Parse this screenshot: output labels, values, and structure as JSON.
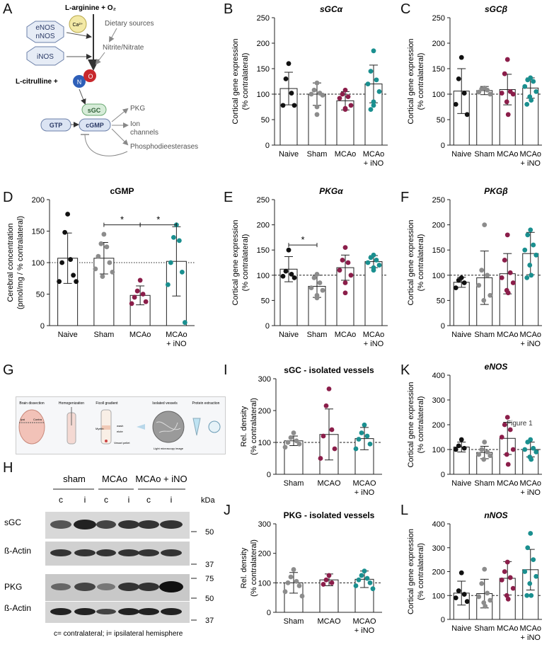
{
  "figure": {
    "panels": [
      "A",
      "B",
      "C",
      "D",
      "E",
      "F",
      "G",
      "H",
      "I",
      "J",
      "K",
      "L"
    ],
    "overlay_text": "Figure 1"
  },
  "colors": {
    "naive": "#111111",
    "sham": "#8c8c8c",
    "mcao": "#8b1e4a",
    "ino": "#1a8f8f",
    "bar_edge": "#222222"
  },
  "panel_a": {
    "substrate": "L-arginine + O₂",
    "enzymes": [
      "eNOS",
      "nNOS"
    ],
    "ca": "Ca²⁺",
    "inos": "iNOS",
    "dietary": "Dietary sources",
    "nitrite": "Nitrite/Nitrate",
    "citrulline": "L-citrulline +",
    "n": "N",
    "o": "O",
    "sgc": "sGC",
    "gtp": "GTP",
    "cgmp": "cGMP",
    "targets": [
      "PKG",
      "Ion",
      "channels",
      "Phosphodieesterases"
    ]
  },
  "panel_g": {
    "steps": [
      "Brain dissection",
      "Homogenization",
      "Ficoll gradient",
      "Isolated vessels",
      "Protein extraction"
    ],
    "labels": [
      "Ipsi",
      "Contra",
      "Myelin",
      "wash",
      "elute",
      "Vessel pellet",
      "Light microscopy image"
    ]
  },
  "panel_h": {
    "groups": [
      "sham",
      "MCAo",
      "MCAo + iNO"
    ],
    "lanes": [
      "c",
      "i",
      "c",
      "i",
      "c",
      "i"
    ],
    "kda_label": "kDa",
    "blots": [
      {
        "label": "sGC",
        "marker": "50"
      },
      {
        "label": "ß-Actin",
        "marker": "37"
      },
      {
        "label": "PKG",
        "marker": "75"
      },
      {
        "label": "ß-Actin",
        "marker": "37"
      }
    ],
    "marker_mid": "50",
    "caption": "c= contralateral; i= ipsilateral hemisphere"
  },
  "chart_data": [
    {
      "id": "B",
      "type": "bar",
      "title": "sGCα",
      "title_italic": true,
      "ylabel": [
        "Cortical gene expression",
        "(% contralateral)"
      ],
      "ylim": [
        0,
        250
      ],
      "yticks": [
        0,
        50,
        100,
        150,
        200,
        250
      ],
      "categories": [
        [
          "Naive"
        ],
        [
          "Sham"
        ],
        [
          "MCAo"
        ],
        [
          "MCAo",
          "+ iNO"
        ]
      ],
      "reference_line": 100,
      "means": [
        111,
        100,
        87,
        120
      ],
      "sd": [
        32,
        22,
        18,
        37
      ],
      "points": [
        [
          160,
          130,
          102,
          78,
          78
        ],
        [
          122,
          108,
          102,
          100,
          98,
          75,
          60
        ],
        [
          108,
          100,
          95,
          92,
          78,
          72,
          70
        ],
        [
          185,
          145,
          128,
          120,
          105,
          85,
          78,
          70
        ]
      ],
      "significance": []
    },
    {
      "id": "C",
      "type": "bar",
      "title": "sGCβ",
      "title_italic": true,
      "ylabel": [
        "Cortical gene expression",
        "(% contralateral)"
      ],
      "ylim": [
        0,
        250
      ],
      "yticks": [
        0,
        50,
        100,
        150,
        200,
        250
      ],
      "categories": [
        [
          "Naive"
        ],
        [
          "Sham"
        ],
        [
          "MCAo"
        ],
        [
          "MCAo",
          "+ iNO"
        ]
      ],
      "reference_line": 100,
      "means": [
        106,
        107,
        109,
        112
      ],
      "sd": [
        44,
        8,
        30,
        20
      ],
      "points": [
        [
          172,
          130,
          102,
          80,
          60
        ],
        [
          112,
          110,
          108,
          104,
          100
        ],
        [
          168,
          140,
          105,
          102,
          100,
          85,
          60
        ],
        [
          132,
          128,
          125,
          115,
          105,
          95,
          88,
          80
        ]
      ],
      "significance": []
    },
    {
      "id": "D",
      "type": "bar",
      "title": "cGMP",
      "title_italic": false,
      "ylabel": [
        "Cerebral concentration",
        "(pmol/mg / % contralateral)"
      ],
      "ylim": [
        0,
        200
      ],
      "yticks": [
        0,
        50,
        100,
        150,
        200
      ],
      "categories": [
        [
          "Naive"
        ],
        [
          "Sham"
        ],
        [
          "MCAo"
        ],
        [
          "MCAo",
          "+ iNO"
        ]
      ],
      "reference_line": 100,
      "means": [
        107,
        107,
        48,
        102
      ],
      "sd": [
        40,
        25,
        15,
        55
      ],
      "points": [
        [
          177,
          148,
          105,
          100,
          80,
          70,
          70
        ],
        [
          145,
          130,
          125,
          110,
          100,
          90,
          85,
          78
        ],
        [
          72,
          55,
          50,
          45,
          38,
          35
        ],
        [
          160,
          140,
          135,
          100,
          85,
          65,
          5
        ]
      ],
      "significance": [
        {
          "from": 1,
          "to": 2,
          "y": 160,
          "label": "*"
        },
        {
          "from": 2,
          "to": 3,
          "y": 160,
          "label": "*"
        }
      ]
    },
    {
      "id": "E",
      "type": "bar",
      "title": "PKGα",
      "title_italic": true,
      "ylabel": [
        "Cortical gene expression",
        "(% contralateral)"
      ],
      "ylim": [
        0,
        250
      ],
      "yticks": [
        0,
        50,
        100,
        150,
        200,
        250
      ],
      "categories": [
        [
          "Naive"
        ],
        [
          "Sham"
        ],
        [
          "MCAo"
        ],
        [
          "MCAo",
          "+ iNO"
        ]
      ],
      "reference_line": 100,
      "means": [
        112,
        78,
        115,
        127
      ],
      "sd": [
        25,
        22,
        25,
        12
      ],
      "points": [
        [
          150,
          108,
          102,
          98,
          95
        ],
        [
          102,
          95,
          85,
          75,
          70,
          60,
          55
        ],
        [
          155,
          130,
          125,
          110,
          100,
          85,
          65
        ],
        [
          140,
          135,
          130,
          125,
          120,
          115,
          110
        ]
      ],
      "significance": [
        {
          "from": 0,
          "to": 1,
          "y": 160,
          "label": "*"
        }
      ]
    },
    {
      "id": "F",
      "type": "bar",
      "title": "PKGβ",
      "title_italic": true,
      "ylabel": [
        "Cortical gene expression",
        "(% contralateral)"
      ],
      "ylim": [
        0,
        250
      ],
      "yticks": [
        0,
        50,
        100,
        150,
        200,
        250
      ],
      "categories": [
        [
          "Naive"
        ],
        [
          "Sham"
        ],
        [
          "MCAo"
        ],
        [
          "MCAo",
          "+ iNO"
        ]
      ],
      "reference_line": 100,
      "means": [
        86,
        95,
        103,
        143
      ],
      "sd": [
        10,
        53,
        40,
        42
      ],
      "points": [
        [
          95,
          90,
          85,
          75
        ],
        [
          200,
          110,
          100,
          80,
          60,
          50
        ],
        [
          180,
          130,
          105,
          95,
          85,
          70,
          65
        ],
        [
          190,
          180,
          160,
          150,
          140,
          120,
          100,
          95
        ]
      ],
      "significance": []
    },
    {
      "id": "I",
      "type": "bar",
      "title": "sGC - isolated vessels",
      "title_italic": false,
      "ylabel": [
        "Rel. density",
        "(% contralateral)"
      ],
      "ylim": [
        0,
        300
      ],
      "yticks": [
        0,
        100,
        200,
        300
      ],
      "categories": [
        [
          "Sham"
        ],
        [
          "MCAO"
        ],
        [
          "MCAO",
          "+ iNO"
        ]
      ],
      "reference_line": 100,
      "means": [
        105,
        125,
        112
      ],
      "sd": [
        15,
        80,
        35
      ],
      "points": [
        [
          130,
          115,
          105,
          100,
          95,
          85
        ],
        [
          268,
          215,
          140,
          120,
          80,
          50
        ],
        [
          155,
          130,
          120,
          110,
          95,
          80
        ]
      ],
      "significance": []
    },
    {
      "id": "J",
      "type": "bar",
      "title": "PKG - isolated vessels",
      "title_italic": false,
      "ylabel": [
        "Rel. density",
        "(% contralateral)"
      ],
      "ylim": [
        0,
        300
      ],
      "yticks": [
        0,
        100,
        200,
        300
      ],
      "categories": [
        [
          "Sham"
        ],
        [
          "MCAO"
        ],
        [
          "MCAO",
          "+ iNO"
        ]
      ],
      "reference_line": 100,
      "means": [
        100,
        110,
        112
      ],
      "sd": [
        35,
        20,
        28
      ],
      "points": [
        [
          145,
          120,
          105,
          100,
          90,
          70,
          55
        ],
        [
          125,
          110,
          100,
          95
        ],
        [
          140,
          125,
          115,
          110,
          100,
          90,
          80
        ]
      ],
      "significance": []
    },
    {
      "id": "K",
      "type": "bar",
      "title": "eNOS",
      "title_italic": true,
      "ylabel": [
        "Cortical gene expression",
        "(% contralateral)"
      ],
      "ylim": [
        0,
        400
      ],
      "yticks": [
        0,
        100,
        200,
        300,
        400
      ],
      "categories": [
        [
          "Naive"
        ],
        [
          "Sham"
        ],
        [
          "MCAo"
        ],
        [
          "MCAo",
          "+ iNO"
        ]
      ],
      "reference_line": 100,
      "means": [
        110,
        88,
        145,
        100
      ],
      "sd": [
        20,
        25,
        65,
        30
      ],
      "points": [
        [
          140,
          115,
          105,
          100
        ],
        [
          130,
          100,
          90,
          80,
          75,
          60
        ],
        [
          230,
          200,
          180,
          150,
          100,
          80,
          40
        ],
        [
          140,
          130,
          105,
          100,
          90,
          70,
          60
        ]
      ],
      "significance": []
    },
    {
      "id": "L",
      "type": "bar",
      "title": "nNOS",
      "title_italic": true,
      "ylabel": [
        "Cortical gene expression",
        "(% contralateral)"
      ],
      "ylim": [
        0,
        400
      ],
      "yticks": [
        0,
        100,
        200,
        300,
        400
      ],
      "categories": [
        [
          "Naive"
        ],
        [
          "Sham"
        ],
        [
          "MCAo"
        ],
        [
          "MCAo",
          "+ iNO"
        ]
      ],
      "reference_line": 100,
      "means": [
        110,
        108,
        172,
        208
      ],
      "sd": [
        50,
        60,
        70,
        85
      ],
      "points": [
        [
          195,
          120,
          105,
          90,
          75
        ],
        [
          210,
          150,
          110,
          95,
          80,
          70,
          55
        ],
        [
          240,
          200,
          175,
          165,
          130,
          100,
          85
        ],
        [
          360,
          300,
          250,
          200,
          180,
          150,
          100,
          100
        ]
      ],
      "significance": []
    }
  ]
}
